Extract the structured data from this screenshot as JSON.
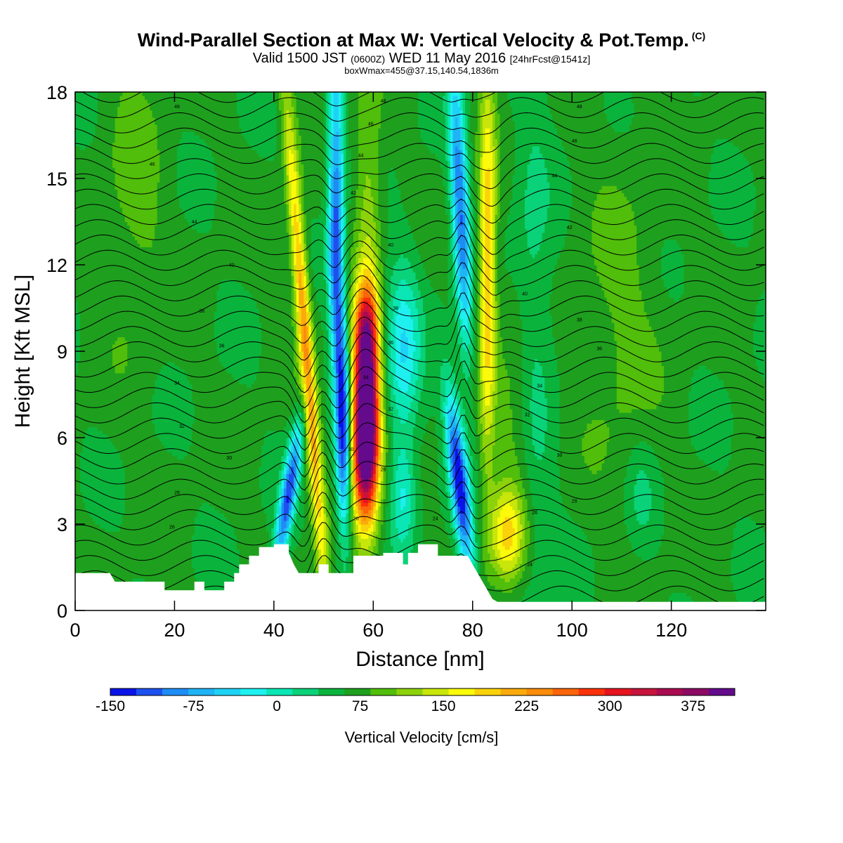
{
  "header": {
    "title": "Wind-Parallel Section at Max W: Vertical Velocity & Pot.Temp.",
    "copyright": "(C)",
    "valid_main": "Valid 1500 JST",
    "valid_utc": "(0600Z)",
    "valid_date": "WED 11 May 2016",
    "forecast": "[24hrFcst@1541z]",
    "subtitle": "boxWmax=455@37.15,140.54,1836m"
  },
  "chart_data": {
    "type": "heatmap",
    "xlabel": "Distance [nm]",
    "ylabel": "Height [Kft MSL]",
    "xlim": [
      0,
      139
    ],
    "ylim": [
      0,
      18
    ],
    "xticks": [
      0,
      20,
      40,
      60,
      80,
      100,
      120
    ],
    "yticks": [
      0,
      3,
      6,
      9,
      12,
      15,
      18
    ],
    "colorbar": {
      "label": "Vertical Velocity [cm/s]",
      "range": [
        -150,
        412.5
      ],
      "step": 18.75,
      "tick_values": [
        -150,
        -75,
        0,
        75,
        150,
        225,
        300,
        375
      ],
      "tick_labels": [
        "-150",
        "-75",
        "0",
        "75",
        "150",
        "225",
        "300",
        "375"
      ],
      "colors": [
        "#0a14e6",
        "#1e50f0",
        "#1e8cf5",
        "#1eb4f5",
        "#1ed2f5",
        "#1ef0f0",
        "#0ae6b4",
        "#0ad278",
        "#0ab43c",
        "#1ea01e",
        "#50be0a",
        "#8cd20a",
        "#c8e60a",
        "#fafa0a",
        "#fad20a",
        "#faaa0a",
        "#fa8c0a",
        "#fa640a",
        "#fa320a",
        "#e6141e",
        "#c8143c",
        "#aa0a50",
        "#8c0a64",
        "#640a8c"
      ]
    },
    "vertical_velocity_features": [
      {
        "x": 58.5,
        "y": 6.2,
        "peak_w": 375
      },
      {
        "x": 46.5,
        "y": 9.0,
        "peak_w": 130
      },
      {
        "x": 79.0,
        "y": 2.5,
        "peak_w": -150
      },
      {
        "x": 83.0,
        "y": 12.0,
        "peak_w": 110
      }
    ],
    "terrain_top_kft": [
      [
        0,
        1.3
      ],
      [
        7,
        1.3
      ],
      [
        8,
        1.0
      ],
      [
        18,
        1.0
      ],
      [
        18,
        0.7
      ],
      [
        24,
        0.7
      ],
      [
        24,
        1.0
      ],
      [
        26,
        1.0
      ],
      [
        26,
        0.7
      ],
      [
        30,
        0.7
      ],
      [
        30,
        1.0
      ],
      [
        32,
        1.0
      ],
      [
        32,
        1.3
      ],
      [
        33,
        1.3
      ],
      [
        33,
        1.6
      ],
      [
        35,
        1.6
      ],
      [
        35,
        1.9
      ],
      [
        37,
        1.9
      ],
      [
        37,
        2.2
      ],
      [
        40,
        2.2
      ],
      [
        40,
        2.3
      ],
      [
        43,
        2.3
      ],
      [
        43,
        2.0
      ],
      [
        44,
        1.6
      ],
      [
        45,
        1.3
      ],
      [
        49,
        1.3
      ],
      [
        49,
        1.6
      ],
      [
        51,
        1.6
      ],
      [
        51,
        1.3
      ],
      [
        53,
        1.3
      ],
      [
        56,
        1.3
      ],
      [
        56,
        1.9
      ],
      [
        62,
        1.9
      ],
      [
        62,
        2.0
      ],
      [
        66,
        2.0
      ],
      [
        66,
        1.6
      ],
      [
        67,
        1.6
      ],
      [
        67,
        2.0
      ],
      [
        69,
        2.0
      ],
      [
        69,
        2.3
      ],
      [
        73,
        2.3
      ],
      [
        73,
        1.9
      ],
      [
        79,
        1.9
      ],
      [
        80,
        1.6
      ],
      [
        81,
        1.3
      ],
      [
        82,
        1.0
      ],
      [
        83,
        0.7
      ],
      [
        84,
        0.4
      ],
      [
        85,
        0.3
      ],
      [
        139,
        0.3
      ]
    ],
    "pot_temp_contour_labels": [
      {
        "x": 20.5,
        "y": 17.5,
        "text": "48"
      },
      {
        "x": 15.5,
        "y": 15.5,
        "text": "46"
      },
      {
        "x": 24.0,
        "y": 13.5,
        "text": "44"
      },
      {
        "x": 31.5,
        "y": 12.0,
        "text": "40"
      },
      {
        "x": 25.5,
        "y": 10.4,
        "text": "38"
      },
      {
        "x": 29.5,
        "y": 9.2,
        "text": "36"
      },
      {
        "x": 20.5,
        "y": 7.9,
        "text": "34"
      },
      {
        "x": 21.5,
        "y": 6.4,
        "text": "32"
      },
      {
        "x": 31.0,
        "y": 5.3,
        "text": "30"
      },
      {
        "x": 20.5,
        "y": 4.1,
        "text": "28"
      },
      {
        "x": 19.5,
        "y": 2.9,
        "text": "26"
      },
      {
        "x": 62.0,
        "y": 17.7,
        "text": "48"
      },
      {
        "x": 59.5,
        "y": 16.9,
        "text": "46"
      },
      {
        "x": 57.5,
        "y": 15.8,
        "text": "44"
      },
      {
        "x": 56.0,
        "y": 14.5,
        "text": "42"
      },
      {
        "x": 63.5,
        "y": 12.7,
        "text": "40"
      },
      {
        "x": 64.5,
        "y": 10.5,
        "text": "38"
      },
      {
        "x": 63.5,
        "y": 9.3,
        "text": "36"
      },
      {
        "x": 58.5,
        "y": 8.1,
        "text": "34"
      },
      {
        "x": 63.5,
        "y": 7.0,
        "text": "32"
      },
      {
        "x": 55.5,
        "y": 5.6,
        "text": "30"
      },
      {
        "x": 62.0,
        "y": 4.9,
        "text": "28"
      },
      {
        "x": 56.5,
        "y": 3.2,
        "text": "26"
      },
      {
        "x": 72.5,
        "y": 3.2,
        "text": "24"
      },
      {
        "x": 101.5,
        "y": 17.5,
        "text": "48"
      },
      {
        "x": 100.5,
        "y": 16.3,
        "text": "46"
      },
      {
        "x": 96.5,
        "y": 15.1,
        "text": "44"
      },
      {
        "x": 99.5,
        "y": 13.3,
        "text": "42"
      },
      {
        "x": 90.5,
        "y": 11.0,
        "text": "40"
      },
      {
        "x": 101.5,
        "y": 10.1,
        "text": "38"
      },
      {
        "x": 105.5,
        "y": 9.1,
        "text": "36"
      },
      {
        "x": 93.5,
        "y": 7.8,
        "text": "34"
      },
      {
        "x": 91.0,
        "y": 6.8,
        "text": "32"
      },
      {
        "x": 97.5,
        "y": 5.4,
        "text": "30"
      },
      {
        "x": 100.5,
        "y": 3.8,
        "text": "28"
      },
      {
        "x": 92.5,
        "y": 3.4,
        "text": "26"
      },
      {
        "x": 91.5,
        "y": 1.6,
        "text": "24"
      }
    ]
  }
}
